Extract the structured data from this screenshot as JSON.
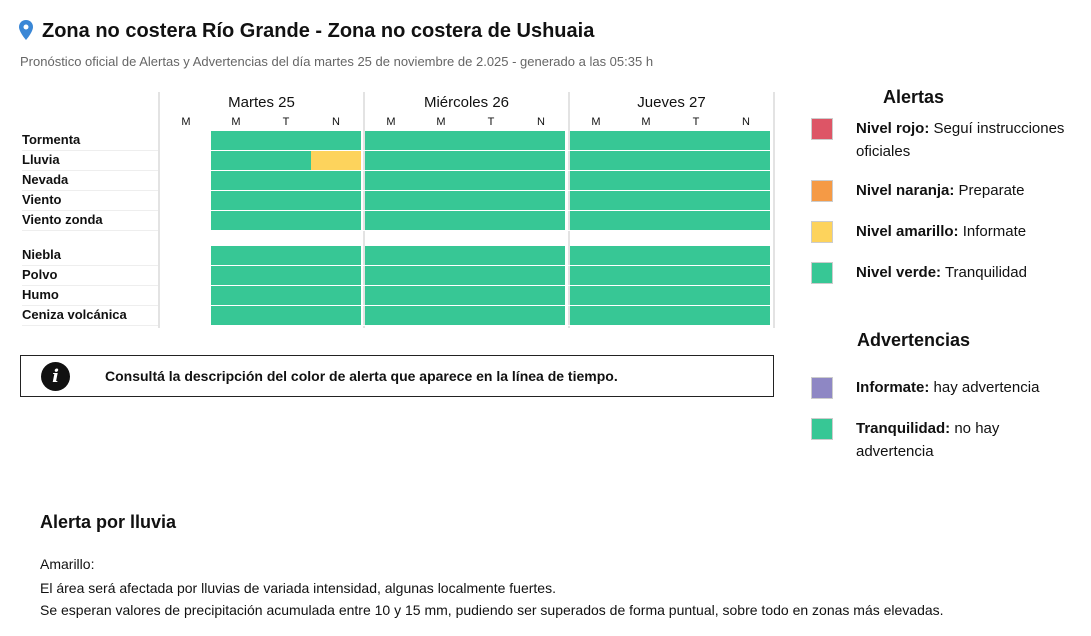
{
  "header": {
    "title": "Zona no costera Río Grande - Zona no costera de Ushuaia",
    "subtitle": "Pronóstico oficial de Alertas y Advertencias del día martes 25 de noviembre de 2.025 - generado a las 05:35 h"
  },
  "colors": {
    "verde": "#37c795",
    "amarillo": "#fdd35c",
    "naranja": "#f59a45",
    "rojo": "#dd5566",
    "violeta": "#8e87c4"
  },
  "days": [
    {
      "label": "Martes 25",
      "periods": [
        "M",
        "M",
        "T",
        "N"
      ]
    },
    {
      "label": "Miércoles 26",
      "periods": [
        "M",
        "M",
        "T",
        "N"
      ]
    },
    {
      "label": "Jueves 27",
      "periods": [
        "M",
        "M",
        "T",
        "N"
      ]
    }
  ],
  "rows": [
    {
      "label": "Tormenta",
      "cells": [
        null,
        "verde",
        "verde",
        "verde",
        "verde",
        "verde",
        "verde",
        "verde",
        "verde",
        "verde",
        "verde",
        "verde"
      ]
    },
    {
      "label": "Lluvia",
      "cells": [
        null,
        "verde",
        "verde",
        "amarillo",
        "verde",
        "verde",
        "verde",
        "verde",
        "verde",
        "verde",
        "verde",
        "verde"
      ]
    },
    {
      "label": "Nevada",
      "cells": [
        null,
        "verde",
        "verde",
        "verde",
        "verde",
        "verde",
        "verde",
        "verde",
        "verde",
        "verde",
        "verde",
        "verde"
      ]
    },
    {
      "label": "Viento",
      "cells": [
        null,
        "verde",
        "verde",
        "verde",
        "verde",
        "verde",
        "verde",
        "verde",
        "verde",
        "verde",
        "verde",
        "verde"
      ]
    },
    {
      "label": "Viento zonda",
      "cells": [
        null,
        "verde",
        "verde",
        "verde",
        "verde",
        "verde",
        "verde",
        "verde",
        "verde",
        "verde",
        "verde",
        "verde"
      ]
    },
    {
      "label": "Niebla",
      "cells": [
        null,
        "verde",
        "verde",
        "verde",
        "verde",
        "verde",
        "verde",
        "verde",
        "verde",
        "verde",
        "verde",
        "verde"
      ]
    },
    {
      "label": "Polvo",
      "cells": [
        null,
        "verde",
        "verde",
        "verde",
        "verde",
        "verde",
        "verde",
        "verde",
        "verde",
        "verde",
        "verde",
        "verde"
      ]
    },
    {
      "label": "Humo",
      "cells": [
        null,
        "verde",
        "verde",
        "verde",
        "verde",
        "verde",
        "verde",
        "verde",
        "verde",
        "verde",
        "verde",
        "verde"
      ]
    },
    {
      "label": "Ceniza volcánica",
      "cells": [
        null,
        "verde",
        "verde",
        "verde",
        "verde",
        "verde",
        "verde",
        "verde",
        "verde",
        "verde",
        "verde",
        "verde"
      ]
    }
  ],
  "note": "Consultá la descripción del color de alerta que aparece en la línea de tiempo.",
  "legend": {
    "alertas_title": "Alertas",
    "alertas": [
      {
        "bold": "Nivel rojo:",
        "text": " Seguí instrucciones oficiales",
        "color": "rojo"
      },
      {
        "bold": "Nivel naranja:",
        "text": " Preparate",
        "color": "naranja"
      },
      {
        "bold": "Nivel amarillo:",
        "text": " Informate",
        "color": "amarillo"
      },
      {
        "bold": "Nivel verde:",
        "text": " Tranquilidad",
        "color": "verde"
      }
    ],
    "advertencias_title": "Advertencias",
    "advertencias": [
      {
        "bold": "Informate:",
        "text": " hay advertencia",
        "color": "violeta"
      },
      {
        "bold": "Tranquilidad:",
        "text": " no hay advertencia",
        "color": "verde"
      }
    ]
  },
  "alert": {
    "title": "Alerta por lluvia",
    "lines": [
      "Amarillo:",
      "El área será afectada por lluvias de variada intensidad, algunas localmente fuertes.",
      "Se esperan valores de precipitación acumulada entre 10 y 15 mm, pudiendo ser superados de forma puntual, sobre todo en zonas más elevadas."
    ]
  }
}
